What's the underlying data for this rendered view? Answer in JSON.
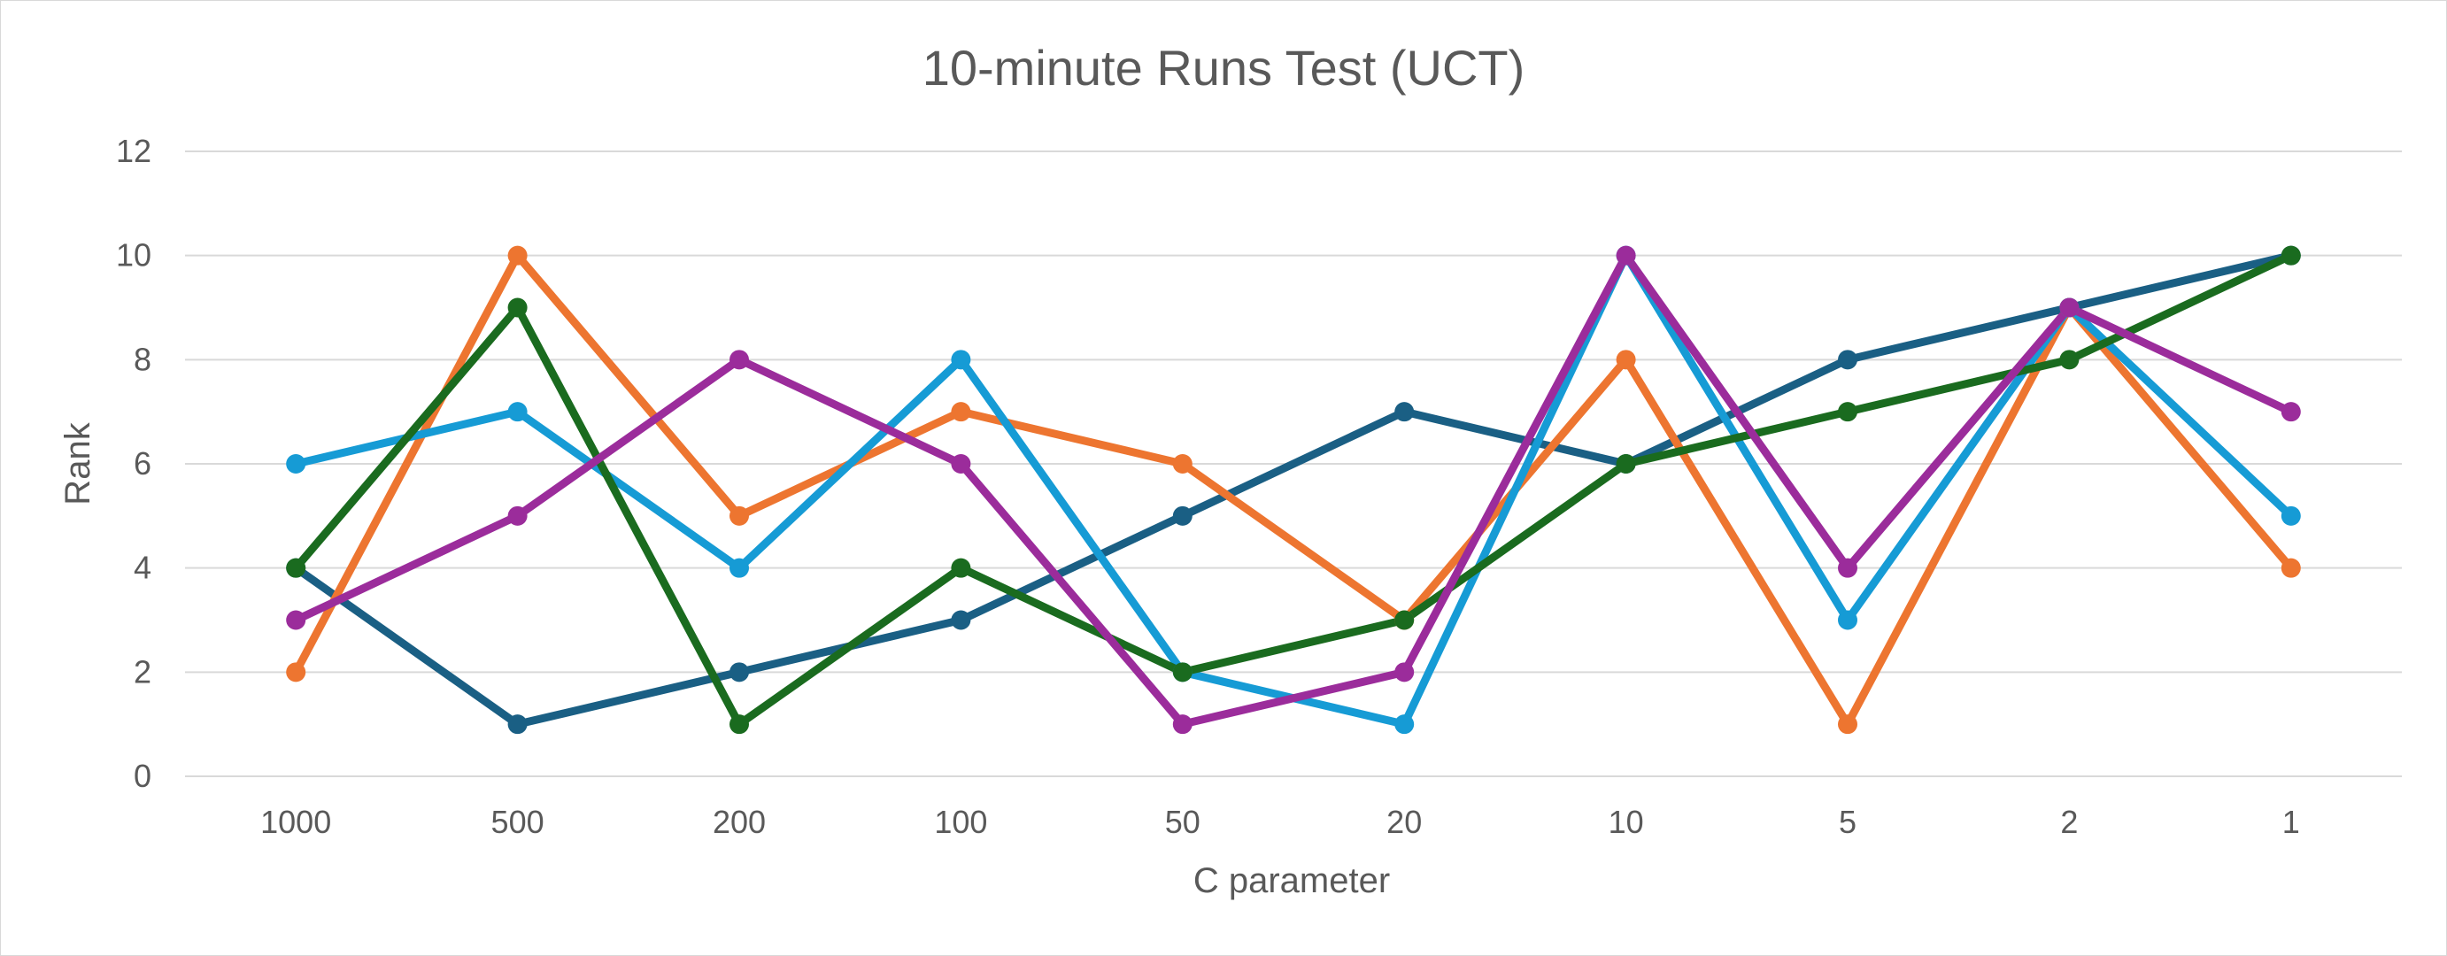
{
  "chart_data": {
    "type": "line",
    "title": "10-minute Runs Test (UCT)",
    "xlabel": "C parameter",
    "ylabel": "Rank",
    "categories": [
      "1000",
      "500",
      "200",
      "100",
      "50",
      "20",
      "10",
      "5",
      "2",
      "1"
    ],
    "ylim": [
      0,
      12
    ],
    "yticks": [
      0,
      2,
      4,
      6,
      8,
      10,
      12
    ],
    "grid": true,
    "legend": "none",
    "series": [
      {
        "color": "#1a5f84",
        "values": [
          4,
          1,
          2,
          3,
          5,
          7,
          6,
          8,
          9,
          10
        ]
      },
      {
        "color": "#ed7530",
        "values": [
          2,
          10,
          5,
          7,
          6,
          3,
          8,
          1,
          9,
          4
        ]
      },
      {
        "color": "#169bd5",
        "values": [
          6,
          7,
          4,
          8,
          2,
          1,
          10,
          3,
          9,
          5
        ]
      },
      {
        "color": "#1a6b1f",
        "values": [
          4,
          9,
          1,
          4,
          2,
          3,
          6,
          7,
          8,
          10
        ]
      },
      {
        "color": "#9b2c9b",
        "values": [
          3,
          5,
          8,
          6,
          1,
          2,
          10,
          4,
          9,
          7
        ]
      }
    ]
  }
}
